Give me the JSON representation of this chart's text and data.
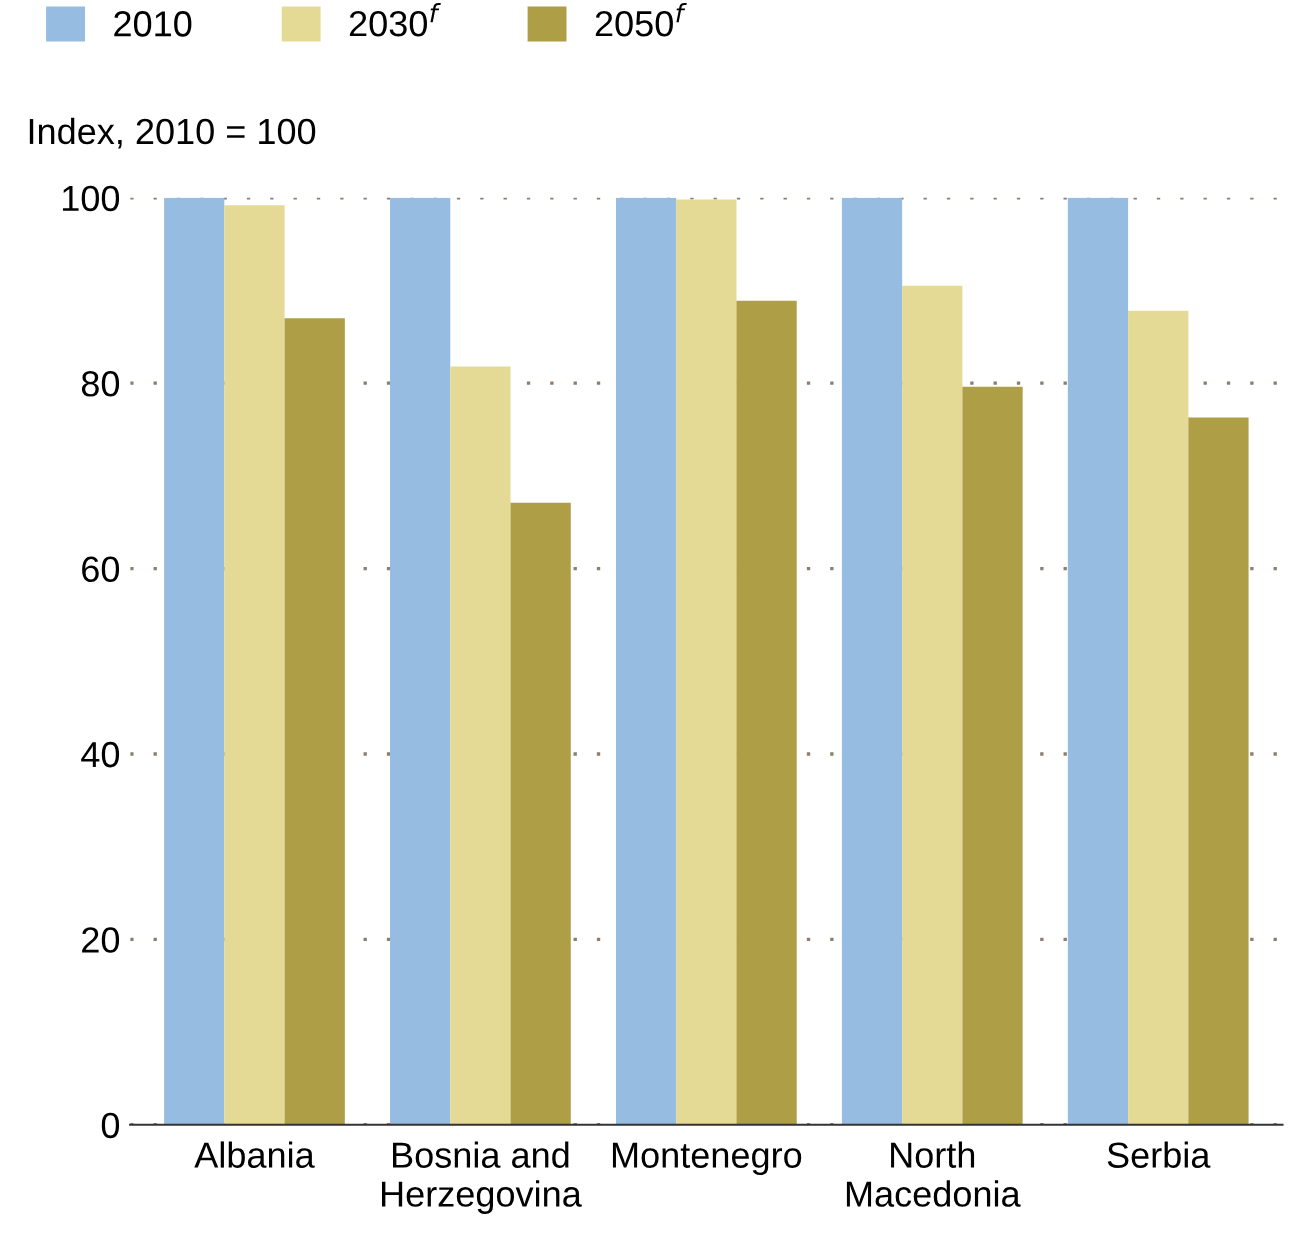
{
  "chart_data": {
    "type": "bar",
    "ylabel": "Index, 2010 = 100",
    "categories": [
      "Albania",
      "Bosnia and\nHerzegovina",
      "Montenegro",
      "North\nMacedonia",
      "Serbia"
    ],
    "series": [
      {
        "name": "2010",
        "color": "#96bce2",
        "values": [
          100,
          100,
          100,
          100,
          100
        ]
      },
      {
        "name": "2030$^{f}$",
        "color": "#e4da95",
        "values": [
          99.2,
          81.8,
          99.8,
          90.5,
          87.8
        ]
      },
      {
        "name": "2050$^{f}$",
        "color": "#ae9e45",
        "values": [
          87.0,
          67.1,
          88.9,
          79.6,
          76.3
        ]
      }
    ],
    "ylim": [
      0,
      100
    ],
    "yticks": [
      0,
      20,
      40,
      60,
      80,
      100
    ],
    "grid": "y",
    "legend": "top left"
  }
}
